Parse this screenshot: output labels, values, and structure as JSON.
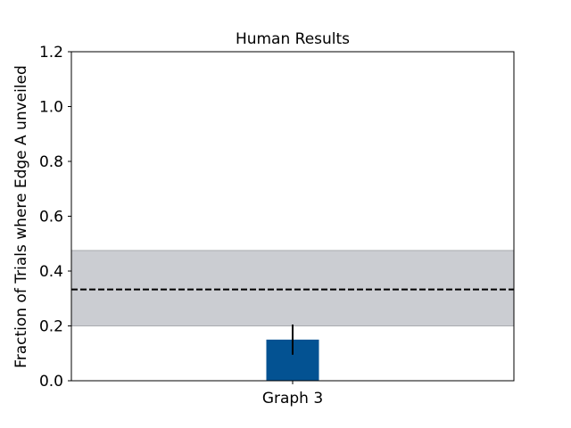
{
  "chart_data": {
    "type": "bar",
    "title": "Human Results",
    "xlabel": "",
    "ylabel": "Fraction of Trials where Edge A unveiled",
    "categories": [
      "Graph 3"
    ],
    "values": [
      0.15
    ],
    "error": [
      [
        0.095,
        0.205
      ]
    ],
    "ylim": [
      0,
      1.2
    ],
    "yticks": [
      "0.0",
      "0.2",
      "0.4",
      "0.6",
      "0.8",
      "1.0",
      "1.2"
    ],
    "reference_line": {
      "value": 0.333,
      "style": "dashed",
      "color": "#000000"
    },
    "reference_band": {
      "low": 0.2,
      "high": 0.475,
      "color": "#cbcdd2"
    },
    "bar_color": "#035292",
    "grid": false,
    "legend": "none"
  }
}
